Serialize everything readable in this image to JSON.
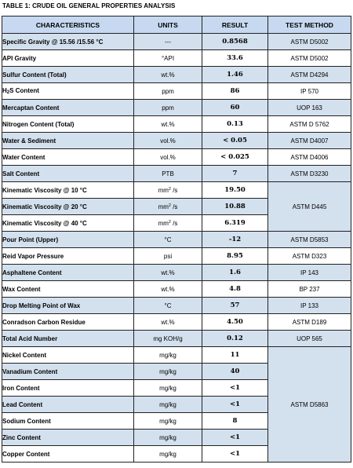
{
  "caption": "TABLE 1: CRUDE OIL GENERAL PROPERTIES ANALYSIS",
  "headers": {
    "characteristics": "CHARACTERISTICS",
    "units": "UNITS",
    "result": "RESULT",
    "method": "TEST METHOD"
  },
  "rows": [
    {
      "characteristic": "Specific Gravity @ 15.56 /15.56 °C",
      "unit": "---",
      "result": "0.8568",
      "method": "ASTM D5002"
    },
    {
      "characteristic": "API Gravity",
      "unit": "°API",
      "result": "33.6",
      "method": "ASTM D5002"
    },
    {
      "characteristic": "Sulfur Content (Total)",
      "unit": "wt.%",
      "result": "1.46",
      "method": "ASTM D4294"
    },
    {
      "characteristic_main": "H",
      "characteristic_sub": "2",
      "characteristic_rest": "S Content",
      "unit": "ppm",
      "result": "86",
      "method": "IP 570"
    },
    {
      "characteristic": "Mercaptan Content",
      "unit": "ppm",
      "result": "60",
      "method": "UOP 163"
    },
    {
      "characteristic": "Nitrogen Content (Total)",
      "unit": "wt.%",
      "result": "0.13",
      "method": "ASTM D 5762"
    },
    {
      "characteristic": "Water & Sediment",
      "unit": "vol.%",
      "result": "< 0.05",
      "method": "ASTM D4007"
    },
    {
      "characteristic": "Water Content",
      "unit": "vol.%",
      "result": "< 0.025",
      "method": "ASTM D4006"
    },
    {
      "characteristic": "Salt Content",
      "unit": "PTB",
      "result": "7",
      "method": "ASTM D3230"
    },
    {
      "characteristic": "Kinematic Viscosity @ 10 °C",
      "unit_main": "mm",
      "unit_sup": "2",
      "unit_rest": " /s",
      "result": "19.50"
    },
    {
      "characteristic": "Kinematic Viscosity @ 20 °C",
      "unit_main": "mm",
      "unit_sup": "2",
      "unit_rest": " /s",
      "result": "10.88"
    },
    {
      "characteristic": "Kinematic Viscosity @ 40 °C",
      "unit_main": "mm",
      "unit_sup": "2",
      "unit_rest": " /s",
      "result": "6.319"
    },
    {
      "characteristic": "Pour Point (Upper)",
      "unit": "°C",
      "result": "-12",
      "method": "ASTM D5853"
    },
    {
      "characteristic": "Reid Vapor Pressure",
      "unit": "psi",
      "result": "8.95",
      "method": "ASTM D323"
    },
    {
      "characteristic": "Asphaltene Content",
      "unit": "wt.%",
      "result": "1.6",
      "method": "IP 143"
    },
    {
      "characteristic": "Wax Content",
      "unit": "wt.%",
      "result": "4.8",
      "method": "BP 237"
    },
    {
      "characteristic": "Drop Melting Point of Wax",
      "unit": "°C",
      "result": "57",
      "method": "IP 133"
    },
    {
      "characteristic": "Conradson Carbon Residue",
      "unit": "wt.%",
      "result": "4.50",
      "method": "ASTM D189"
    },
    {
      "characteristic": "Total Acid Number",
      "unit": "mg KOH/g",
      "result": "0.12",
      "method": "UOP 565"
    },
    {
      "characteristic": "Nickel Content",
      "unit": "mg/kg",
      "result": "11"
    },
    {
      "characteristic": "Vanadium Content",
      "unit": "mg/kg",
      "result": "40"
    },
    {
      "characteristic": "Iron Content",
      "unit": "mg/kg",
      "result": "<1"
    },
    {
      "characteristic": "Lead Content",
      "unit": "mg/kg",
      "result": "<1"
    },
    {
      "characteristic": "Sodium Content",
      "unit": "mg/kg",
      "result": "8"
    },
    {
      "characteristic": "Zinc Content",
      "unit": "mg/kg",
      "result": "<1"
    },
    {
      "characteristic": "Copper Content",
      "unit": "mg/kg",
      "result": "<1"
    }
  ],
  "merged_methods": {
    "viscosity": "ASTM D445",
    "metals": "ASTM D5863"
  }
}
